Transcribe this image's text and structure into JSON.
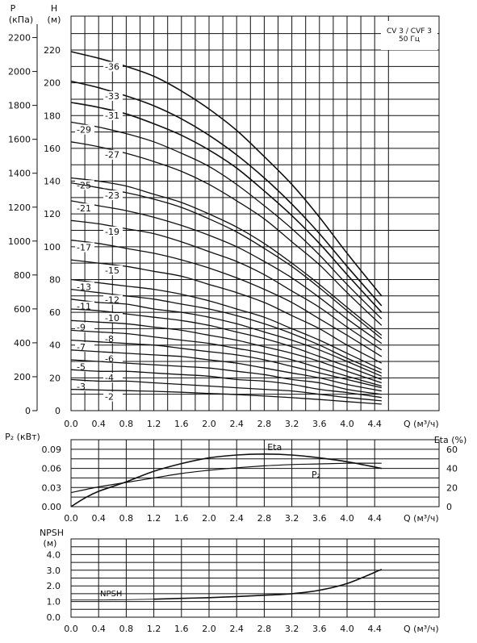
{
  "chart_data": [
    {
      "type": "line",
      "title": "CV 3 / CVF 3\n50 Гц",
      "title_lines": [
        "CV 3 / CVF 3",
        "50 Гц"
      ],
      "y_left_label_top": "P",
      "y_left_label_bottom": "(кПа)",
      "y_right_label_top": "H",
      "y_right_label_bottom": "(м)",
      "xlabel": "Q (м³/ч)",
      "xlim": [
        0,
        4.8
      ],
      "ylim": [
        0,
        230
      ],
      "grid": true,
      "x_ticks": [
        "0.0",
        "0.4",
        "0.8",
        "1.2",
        "1.6",
        "2.0",
        "2.4",
        "2.8",
        "3.2",
        "3.6",
        "4.0",
        "4.4"
      ],
      "h_ticks": [
        "0",
        "20",
        "40",
        "60",
        "80",
        "100",
        "120",
        "140",
        "160",
        "180",
        "200",
        "220"
      ],
      "p_ticks": [
        "0",
        "200",
        "400",
        "600",
        "800",
        "1000",
        "1200",
        "1400",
        "1600",
        "1800",
        "2000",
        "2200"
      ],
      "x": [
        0,
        0.4,
        0.8,
        1.2,
        1.6,
        2.0,
        2.4,
        2.8,
        3.2,
        3.6,
        4.0,
        4.5
      ],
      "series": [
        {
          "name": "-36",
          "values": [
            219,
            215,
            210,
            204,
            195,
            184,
            171,
            155,
            138,
            118,
            96,
            70
          ]
        },
        {
          "name": "-33",
          "values": [
            201,
            197,
            192,
            186,
            178,
            168,
            156,
            142,
            126,
            108,
            88,
            64
          ]
        },
        {
          "name": "-31",
          "values": [
            188,
            185,
            181,
            175,
            168,
            159,
            148,
            134,
            119,
            102,
            83,
            60
          ]
        },
        {
          "name": "-29",
          "values": [
            176,
            173,
            169,
            164,
            157,
            149,
            138,
            125,
            111,
            95,
            77,
            56
          ]
        },
        {
          "name": "-27",
          "values": [
            164,
            161,
            157,
            152,
            146,
            138,
            128,
            117,
            103,
            89,
            72,
            52
          ]
        },
        {
          "name": "-25",
          "values": [
            142,
            140,
            137,
            132,
            127,
            120,
            112,
            102,
            90,
            77,
            63,
            46
          ]
        },
        {
          "name": "-23",
          "values": [
            139,
            136,
            133,
            129,
            124,
            117,
            109,
            99,
            88,
            75,
            61,
            44
          ]
        },
        {
          "name": "-21",
          "values": [
            128,
            125,
            122,
            118,
            113,
            107,
            100,
            91,
            81,
            69,
            56,
            41
          ]
        },
        {
          "name": "-19",
          "values": [
            116,
            114,
            111,
            108,
            103,
            97,
            91,
            83,
            73,
            63,
            51,
            37
          ]
        },
        {
          "name": "-17",
          "values": [
            104,
            102,
            99,
            96,
            92,
            87,
            81,
            74,
            66,
            56,
            46,
            33
          ]
        },
        {
          "name": "-15",
          "values": [
            92,
            90,
            88,
            85,
            82,
            77,
            72,
            66,
            58,
            50,
            40,
            29
          ]
        },
        {
          "name": "-13",
          "values": [
            80,
            78,
            76,
            74,
            71,
            67,
            62,
            57,
            50,
            43,
            35,
            25
          ]
        },
        {
          "name": "-12",
          "values": [
            74,
            72,
            70,
            68,
            65,
            62,
            58,
            53,
            47,
            40,
            32,
            23
          ]
        },
        {
          "name": "-11",
          "values": [
            68,
            66,
            65,
            62,
            60,
            57,
            53,
            48,
            43,
            37,
            30,
            21
          ]
        },
        {
          "name": "-10",
          "values": [
            62,
            61,
            59,
            57,
            55,
            52,
            48,
            44,
            39,
            33,
            27,
            19
          ]
        },
        {
          "name": "-9",
          "values": [
            55,
            54,
            53,
            51,
            49,
            46,
            43,
            39,
            35,
            30,
            24,
            17
          ]
        },
        {
          "name": "-8",
          "values": [
            49,
            48,
            47,
            45,
            43,
            41,
            38,
            35,
            31,
            26,
            21,
            15
          ]
        },
        {
          "name": "-7",
          "values": [
            43,
            42,
            41,
            40,
            38,
            36,
            34,
            31,
            27,
            23,
            19,
            14
          ]
        },
        {
          "name": "-6",
          "values": [
            37,
            36,
            35,
            34,
            33,
            31,
            29,
            26,
            23,
            20,
            16,
            12
          ]
        },
        {
          "name": "-5",
          "values": [
            31,
            30,
            29,
            28,
            27,
            26,
            24,
            22,
            19,
            17,
            13,
            10
          ]
        },
        {
          "name": "-4",
          "values": [
            25,
            24,
            24,
            23,
            22,
            21,
            19,
            18,
            16,
            13,
            11,
            8
          ]
        },
        {
          "name": "-3",
          "values": [
            19,
            18,
            18,
            17,
            16,
            15,
            14,
            13,
            12,
            10,
            8,
            6
          ]
        },
        {
          "name": "-2",
          "values": [
            13,
            12.6,
            12.2,
            11.8,
            11.2,
            10.5,
            9.8,
            8.9,
            7.9,
            6.8,
            5.5,
            4
          ]
        }
      ]
    },
    {
      "type": "line",
      "y_left_label": "P₂ (кВт)",
      "y_right_label": "Eta (%)",
      "xlabel": "Q (м³/ч)",
      "xlim": [
        0,
        4.8
      ],
      "ylim": [
        0,
        0.105
      ],
      "grid": true,
      "x_ticks": [
        "0.0",
        "0.4",
        "0.8",
        "1.2",
        "1.6",
        "2.0",
        "2.4",
        "2.8",
        "3.2",
        "3.6",
        "4.0",
        "4.4"
      ],
      "p2_ticks": [
        "0.00",
        "0.03",
        "0.06",
        "0.09"
      ],
      "eta_ticks": [
        "0",
        "20",
        "40",
        "60"
      ],
      "series": [
        {
          "name": "Eta",
          "x": [
            0,
            0.2,
            0.4,
            0.8,
            1.2,
            1.6,
            2.0,
            2.4,
            2.8,
            3.2,
            3.6,
            4.0,
            4.5
          ],
          "values": [
            0,
            9,
            16,
            26,
            37,
            45,
            51,
            54,
            55,
            54,
            51,
            47,
            40
          ]
        },
        {
          "name": "P₂",
          "x": [
            0,
            0.4,
            0.8,
            1.2,
            1.6,
            2.0,
            2.4,
            2.8,
            3.2,
            3.6,
            4.0,
            4.5
          ],
          "values": [
            0.022,
            0.031,
            0.038,
            0.045,
            0.052,
            0.057,
            0.061,
            0.064,
            0.066,
            0.067,
            0.068,
            0.068
          ]
        }
      ]
    },
    {
      "type": "line",
      "y_label_top": "NPSH",
      "y_label_bottom": "(м)",
      "xlabel": "Q (м³/ч)",
      "xlim": [
        0,
        4.8
      ],
      "ylim": [
        0,
        4.5
      ],
      "grid": true,
      "x_ticks": [
        "0.0",
        "0.4",
        "0.8",
        "1.2",
        "1.6",
        "2.0",
        "2.4",
        "2.8",
        "3.2",
        "3.6",
        "4.0",
        "4.4"
      ],
      "npsh_ticks": [
        "0.0",
        "1.0",
        "2.0",
        "3.0",
        "4.0"
      ],
      "series": [
        {
          "name": "NPSH",
          "x": [
            0,
            0.4,
            0.8,
            1.2,
            1.6,
            2.0,
            2.4,
            2.8,
            3.2,
            3.6,
            4.0,
            4.5
          ],
          "values": [
            1.1,
            1.1,
            1.12,
            1.15,
            1.2,
            1.25,
            1.32,
            1.4,
            1.5,
            1.72,
            2.15,
            3.05
          ]
        }
      ]
    }
  ]
}
